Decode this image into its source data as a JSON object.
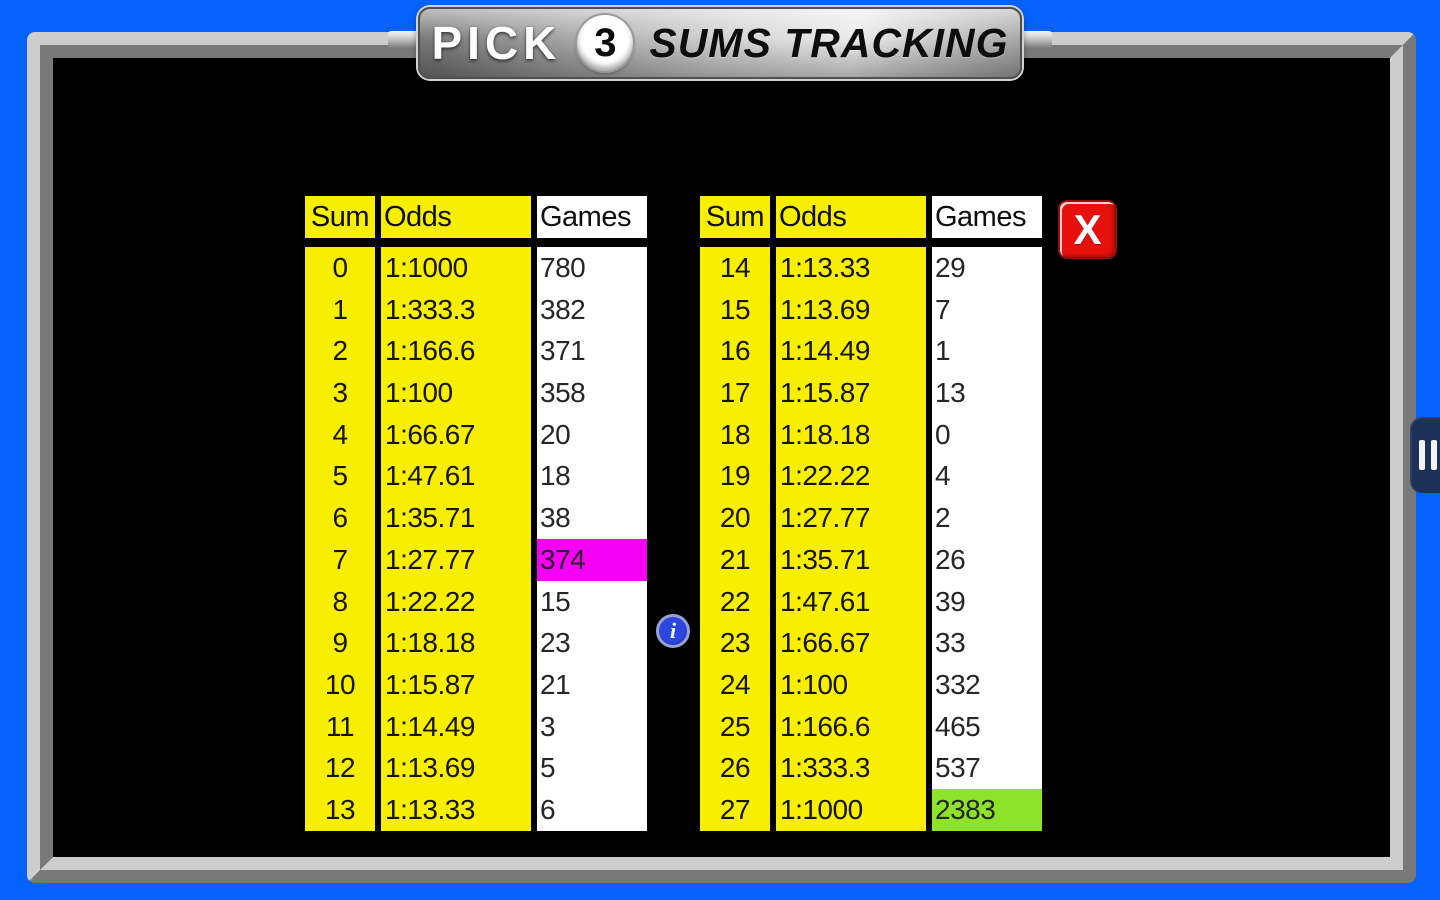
{
  "banner": {
    "pick": "PICK",
    "number": "3",
    "title": "SUMS TRACKING"
  },
  "tables": [
    {
      "headers": [
        "Sum",
        "Odds",
        "Games"
      ],
      "sums": [
        "0",
        "1",
        "2",
        "3",
        "4",
        "5",
        "6",
        "7",
        "8",
        "9",
        "10",
        "11",
        "12",
        "13"
      ],
      "odds": [
        "1:1000",
        "1:333.3",
        "1:166.6",
        "1:100",
        "1:66.67",
        "1:47.61",
        "1:35.71",
        "1:27.77",
        "1:22.22",
        "1:18.18",
        "1:15.87",
        "1:14.49",
        "1:13.69",
        "1:13.33"
      ],
      "games": [
        "780",
        "382",
        "371",
        "358",
        "20",
        "18",
        "38",
        "374",
        "15",
        "23",
        "21",
        "3",
        "5",
        "6"
      ],
      "highlight_row": 7,
      "highlight_color": "#f500f5"
    },
    {
      "headers": [
        "Sum",
        "Odds",
        "Games"
      ],
      "sums": [
        "14",
        "15",
        "16",
        "17",
        "18",
        "19",
        "20",
        "21",
        "22",
        "23",
        "24",
        "25",
        "26",
        "27"
      ],
      "odds": [
        "1:13.33",
        "1:13.69",
        "1:14.49",
        "1:15.87",
        "1:18.18",
        "1:22.22",
        "1:27.77",
        "1:35.71",
        "1:47.61",
        "1:66.67",
        "1:100",
        "1:166.6",
        "1:333.3",
        "1:1000"
      ],
      "games": [
        "29",
        "7",
        "1",
        "13",
        "0",
        "4",
        "2",
        "26",
        "39",
        "33",
        "332",
        "465",
        "537",
        "2383"
      ],
      "highlight_row": 13,
      "highlight_color": "#8ce32a"
    }
  ],
  "close_button": {
    "label": "X"
  },
  "info_icon": {
    "glyph": "i"
  },
  "colors": {
    "background_blue": "#0561fb",
    "table_yellow": "#f7ee00",
    "highlight_magenta": "#f500f5",
    "highlight_green": "#8ce32a",
    "close_red": "#e8100c",
    "info_blue": "#2d46e0",
    "handle_navy": "#1d3156"
  }
}
